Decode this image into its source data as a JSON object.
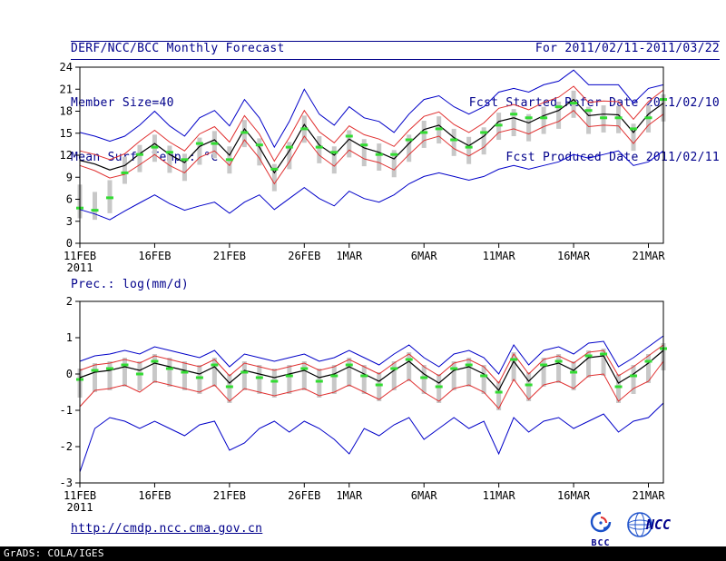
{
  "header": {
    "title": "DERF/NCC/BCC Monthly Forecast",
    "member_size": "Member Size=40",
    "temp_label": "Mean Surf. Temp.: °C",
    "for_range": "For 2011/02/11-2011/03/22",
    "fcst_started": "Fcst Started Refer Date 2011/02/10",
    "fcst_produced": "Fcst Produced Date 2011/02/11"
  },
  "precip_title": "Prec.: log(mm/d)",
  "footer": {
    "link": "http://cmdp.ncc.cma.gov.cn",
    "grads_credit": "GrADS: COLA/IGES",
    "bcc_label": "BCC",
    "ncc_label": "NCC"
  },
  "colors": {
    "header_text": "#00008b",
    "envelope_line": "#0000c8",
    "quartile_line": "#e03030",
    "mean_line": "#000000",
    "obs_dash": "#32dc32",
    "spread_bar": "#c8c8c8",
    "axis": "#000000"
  },
  "chart_data": [
    {
      "type": "line",
      "title": "Mean Surf. Temp.: °C",
      "ylabel": "°C",
      "ylim": [
        0,
        24
      ],
      "ytick_step": 3,
      "grid": false,
      "xticks": {
        "indices": [
          0,
          5,
          10,
          15,
          18,
          23,
          28,
          33,
          38
        ],
        "labels": [
          "11FEB",
          "16FEB",
          "21FEB",
          "26FEB",
          "1MAR",
          "6MAR",
          "11MAR",
          "16MAR",
          "21MAR"
        ],
        "year_label": "2011"
      },
      "series": [
        {
          "name": "ensemble-max",
          "color": "#0000c8",
          "width": 1,
          "values": [
            15.1,
            14.6,
            13.9,
            14.6,
            16.1,
            18.0,
            16.0,
            14.6,
            17.1,
            18.1,
            16.0,
            19.6,
            17.1,
            13.1,
            16.6,
            21.0,
            17.6,
            16.1,
            18.6,
            17.1,
            16.6,
            15.1,
            17.6,
            19.6,
            20.1,
            18.6,
            17.6,
            18.6,
            20.6,
            21.1,
            20.6,
            21.6,
            22.1,
            23.6,
            21.6,
            21.6,
            21.6,
            19.1,
            21.1,
            21.6
          ]
        },
        {
          "name": "upper-quartile",
          "color": "#e03030",
          "width": 1,
          "values": [
            12.6,
            12.1,
            11.4,
            12.2,
            13.9,
            15.4,
            13.8,
            12.6,
            14.9,
            15.9,
            13.8,
            17.4,
            14.9,
            11.2,
            14.4,
            18.1,
            15.2,
            13.7,
            16.0,
            14.8,
            14.2,
            13.2,
            15.4,
            17.3,
            17.9,
            16.2,
            15.1,
            16.4,
            18.4,
            18.9,
            18.2,
            19.2,
            19.9,
            21.4,
            19.2,
            19.4,
            19.3,
            16.9,
            19.3,
            20.9
          ]
        },
        {
          "name": "ensemble-mean",
          "color": "#000000",
          "width": 1.2,
          "values": [
            11.3,
            10.8,
            10.0,
            10.6,
            12.2,
            13.6,
            12.1,
            11.0,
            13.2,
            14.1,
            12.0,
            15.6,
            13.1,
            9.6,
            12.6,
            16.2,
            13.4,
            12.0,
            14.2,
            13.0,
            12.4,
            11.5,
            13.6,
            15.5,
            16.1,
            14.4,
            13.3,
            14.6,
            16.6,
            17.1,
            16.4,
            17.4,
            18.1,
            19.6,
            17.4,
            17.6,
            17.5,
            15.1,
            17.6,
            19.1
          ]
        },
        {
          "name": "lower-quartile",
          "color": "#e03030",
          "width": 1,
          "values": [
            10.6,
            9.9,
            8.9,
            9.4,
            10.7,
            12.1,
            10.6,
            9.6,
            11.7,
            12.6,
            10.6,
            14.1,
            11.6,
            8.1,
            11.1,
            14.6,
            12.0,
            10.5,
            12.7,
            11.5,
            11.0,
            10.0,
            12.1,
            14.0,
            14.6,
            12.9,
            11.9,
            13.1,
            15.1,
            15.6,
            14.9,
            15.9,
            16.6,
            18.1,
            15.9,
            16.1,
            16.0,
            13.6,
            16.1,
            17.6
          ]
        },
        {
          "name": "ensemble-min",
          "color": "#0000c8",
          "width": 1,
          "values": [
            4.6,
            4.0,
            3.2,
            4.4,
            5.5,
            6.6,
            5.4,
            4.5,
            5.1,
            5.6,
            4.1,
            5.6,
            6.6,
            4.6,
            6.1,
            7.6,
            6.1,
            5.1,
            7.1,
            6.1,
            5.6,
            6.6,
            8.1,
            9.1,
            9.6,
            9.1,
            8.6,
            9.1,
            10.1,
            10.6,
            10.1,
            10.6,
            11.1,
            12.1,
            11.6,
            12.1,
            12.6,
            10.6,
            11.1,
            12.6
          ]
        }
      ],
      "obs": {
        "name": "observation-dashes",
        "color": "#32dc32",
        "values": [
          4.8,
          4.5,
          6.2,
          9.6,
          12.1,
          13.1,
          12.4,
          11.4,
          13.6,
          13.6,
          11.4,
          15.1,
          13.4,
          10.1,
          13.1,
          15.6,
          13.1,
          12.4,
          14.6,
          13.4,
          12.1,
          12.1,
          14.1,
          15.1,
          15.6,
          14.1,
          13.1,
          15.1,
          16.1,
          17.6,
          17.1,
          17.1,
          18.6,
          19.1,
          18.1,
          17.1,
          17.1,
          15.6,
          17.1,
          19.6
        ]
      },
      "bars": {
        "name": "ensemble-spread",
        "color": "#c8c8c8",
        "low": [
          3.4,
          3.2,
          4.1,
          8.1,
          9.7,
          11.1,
          9.6,
          8.5,
          10.7,
          11.6,
          9.5,
          13.1,
          10.6,
          7.1,
          10.1,
          13.7,
          10.9,
          9.5,
          11.7,
          10.5,
          9.9,
          9.0,
          11.1,
          13.0,
          13.6,
          11.9,
          10.8,
          12.1,
          14.1,
          14.6,
          13.9,
          14.9,
          15.6,
          17.1,
          14.9,
          15.1,
          15.0,
          12.6,
          15.1,
          16.6
        ],
        "high": [
          8.0,
          7.0,
          8.6,
          11.8,
          13.4,
          14.8,
          13.3,
          12.2,
          14.4,
          15.3,
          13.2,
          16.8,
          14.3,
          10.8,
          13.8,
          17.4,
          14.6,
          13.2,
          15.4,
          14.2,
          13.6,
          12.7,
          14.8,
          16.7,
          17.3,
          15.6,
          14.5,
          15.8,
          17.8,
          18.3,
          17.6,
          18.6,
          19.3,
          20.8,
          18.6,
          18.8,
          18.7,
          16.3,
          18.8,
          20.3
        ]
      }
    },
    {
      "type": "line",
      "title": "Prec.: log(mm/d)",
      "ylabel": "log(mm/d)",
      "ylim": [
        -3,
        2
      ],
      "ytick_step": 1,
      "grid": false,
      "xticks": {
        "indices": [
          0,
          5,
          10,
          15,
          18,
          23,
          28,
          33,
          38
        ],
        "labels": [
          "11FEB",
          "16FEB",
          "21FEB",
          "26FEB",
          "1MAR",
          "6MAR",
          "11MAR",
          "16MAR",
          "21MAR"
        ],
        "year_label": "2011"
      },
      "series": [
        {
          "name": "ensemble-max",
          "color": "#0000c8",
          "width": 1,
          "values": [
            0.35,
            0.5,
            0.55,
            0.65,
            0.55,
            0.75,
            0.65,
            0.55,
            0.45,
            0.65,
            0.2,
            0.55,
            0.45,
            0.35,
            0.45,
            0.55,
            0.35,
            0.45,
            0.65,
            0.45,
            0.25,
            0.55,
            0.8,
            0.45,
            0.2,
            0.55,
            0.65,
            0.45,
            0.0,
            0.8,
            0.25,
            0.65,
            0.75,
            0.55,
            0.85,
            0.9,
            0.2,
            0.45,
            0.75,
            1.05
          ]
        },
        {
          "name": "upper-quartile",
          "color": "#e03030",
          "width": 1,
          "values": [
            0.1,
            0.25,
            0.3,
            0.4,
            0.3,
            0.5,
            0.4,
            0.3,
            0.2,
            0.4,
            -0.05,
            0.3,
            0.2,
            0.1,
            0.2,
            0.3,
            0.1,
            0.2,
            0.4,
            0.2,
            0.0,
            0.3,
            0.55,
            0.2,
            -0.05,
            0.3,
            0.4,
            0.2,
            -0.25,
            0.55,
            0.0,
            0.4,
            0.5,
            0.3,
            0.6,
            0.65,
            -0.05,
            0.2,
            0.5,
            0.8
          ]
        },
        {
          "name": "ensemble-mean",
          "color": "#000000",
          "width": 1.2,
          "values": [
            -0.1,
            0.05,
            0.1,
            0.2,
            0.1,
            0.3,
            0.2,
            0.1,
            0.0,
            0.2,
            -0.25,
            0.1,
            0.0,
            -0.1,
            0.0,
            0.1,
            -0.1,
            0.0,
            0.2,
            0.0,
            -0.2,
            0.1,
            0.35,
            0.0,
            -0.25,
            0.1,
            0.2,
            0.0,
            -0.45,
            0.35,
            -0.2,
            0.2,
            0.3,
            0.1,
            0.45,
            0.5,
            -0.25,
            0.0,
            0.3,
            0.65
          ]
        },
        {
          "name": "lower-quartile",
          "color": "#e03030",
          "width": 1,
          "values": [
            -0.9,
            -0.45,
            -0.4,
            -0.3,
            -0.5,
            -0.2,
            -0.3,
            -0.4,
            -0.5,
            -0.3,
            -0.75,
            -0.4,
            -0.5,
            -0.6,
            -0.5,
            -0.4,
            -0.6,
            -0.5,
            -0.3,
            -0.5,
            -0.7,
            -0.4,
            -0.15,
            -0.5,
            -0.75,
            -0.4,
            -0.3,
            -0.5,
            -0.95,
            -0.15,
            -0.7,
            -0.3,
            -0.2,
            -0.4,
            -0.05,
            0.0,
            -0.75,
            -0.4,
            -0.2,
            0.35
          ]
        },
        {
          "name": "ensemble-min",
          "color": "#0000c8",
          "width": 1,
          "values": [
            -2.7,
            -1.5,
            -1.2,
            -1.3,
            -1.5,
            -1.3,
            -1.5,
            -1.7,
            -1.4,
            -1.3,
            -2.1,
            -1.9,
            -1.5,
            -1.3,
            -1.6,
            -1.3,
            -1.5,
            -1.8,
            -2.2,
            -1.5,
            -1.7,
            -1.4,
            -1.2,
            -1.8,
            -1.5,
            -1.2,
            -1.5,
            -1.3,
            -2.2,
            -1.2,
            -1.6,
            -1.3,
            -1.2,
            -1.5,
            -1.3,
            -1.1,
            -1.6,
            -1.3,
            -1.2,
            -0.8
          ]
        }
      ],
      "obs": {
        "name": "observation-dashes",
        "color": "#32dc32",
        "values": [
          -0.15,
          0.1,
          0.15,
          0.25,
          0.0,
          0.35,
          0.15,
          0.05,
          -0.1,
          0.25,
          -0.35,
          0.05,
          -0.1,
          -0.2,
          -0.05,
          0.15,
          -0.2,
          -0.05,
          0.25,
          -0.05,
          -0.3,
          0.15,
          0.4,
          -0.1,
          -0.35,
          0.15,
          0.25,
          -0.05,
          -0.5,
          0.4,
          -0.3,
          0.25,
          0.35,
          0.05,
          0.5,
          0.55,
          -0.35,
          -0.05,
          0.35,
          0.7
        ]
      },
      "bars": {
        "name": "ensemble-spread",
        "color": "#c8c8c8",
        "low": [
          -0.65,
          -0.5,
          -0.45,
          -0.35,
          -0.45,
          -0.25,
          -0.35,
          -0.45,
          -0.55,
          -0.35,
          -0.8,
          -0.45,
          -0.55,
          -0.65,
          -0.55,
          -0.45,
          -0.65,
          -0.55,
          -0.35,
          -0.55,
          -0.75,
          -0.45,
          -0.2,
          -0.55,
          -0.8,
          -0.45,
          -0.35,
          -0.55,
          -1.0,
          -0.2,
          -0.75,
          -0.35,
          -0.25,
          -0.45,
          -0.1,
          -0.05,
          -0.8,
          -0.55,
          -0.25,
          0.1
        ],
        "high": [
          0.15,
          0.3,
          0.35,
          0.45,
          0.35,
          0.55,
          0.45,
          0.35,
          0.25,
          0.45,
          0.0,
          0.35,
          0.25,
          0.15,
          0.25,
          0.35,
          0.15,
          0.25,
          0.45,
          0.25,
          0.05,
          0.35,
          0.6,
          0.25,
          0.0,
          0.35,
          0.45,
          0.25,
          -0.2,
          0.6,
          0.05,
          0.45,
          0.55,
          0.35,
          0.65,
          0.7,
          0.0,
          0.25,
          0.55,
          0.85
        ]
      }
    }
  ]
}
